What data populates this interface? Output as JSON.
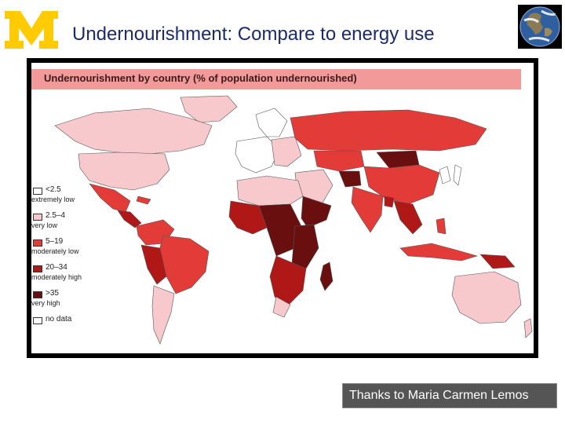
{
  "header": {
    "logo_letter": "M",
    "title": "Undernourishment: Compare to energy use",
    "globe_icon": "earth-globe-icon"
  },
  "map": {
    "heading": "Undernourishment by country (% of population undernourished)",
    "legend": [
      {
        "range": "<2.5",
        "label": "extremely low",
        "color": "#ffffff"
      },
      {
        "range": "2.5–4",
        "label": "very low",
        "color": "#f7c9cc"
      },
      {
        "range": "5–19",
        "label": "moderately low",
        "color": "#e33b37"
      },
      {
        "range": "20–34",
        "label": "moderately high",
        "color": "#b01818"
      },
      {
        "range": ">35",
        "label": "very high",
        "color": "#6a0f10"
      },
      {
        "range": "no data",
        "label": "",
        "color": "#ffffff"
      }
    ]
  },
  "footer": {
    "credit": "Thanks to Maria Carmen Lemos"
  },
  "colors": {
    "title_text": "#1a2a6c",
    "logo_maize": "#ffcb05",
    "banner": "#f29a9a",
    "credit_bg": "#555555"
  }
}
